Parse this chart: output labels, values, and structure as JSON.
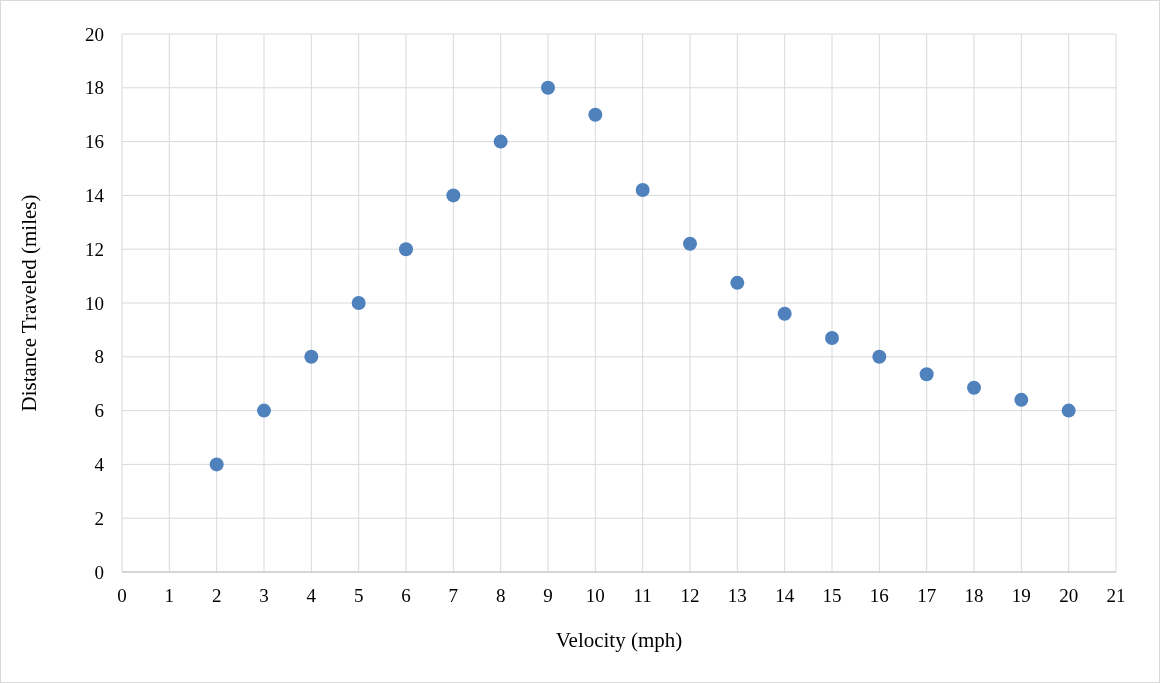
{
  "chart_data": {
    "type": "scatter",
    "xlabel": "Velocity (mph)",
    "ylabel": "Distance Traveled (miles)",
    "x": [
      2,
      3,
      4,
      5,
      6,
      7,
      8,
      9,
      10,
      11,
      12,
      13,
      14,
      15,
      16,
      17,
      18,
      19,
      20
    ],
    "series": [
      {
        "color": "#4f81bd",
        "values": [
          4,
          6,
          8,
          10,
          12,
          14,
          16,
          18,
          17,
          14.2,
          12.2,
          10.75,
          9.6,
          8.7,
          8,
          7.35,
          6.85,
          6.4,
          6
        ]
      }
    ],
    "xlim": [
      0,
      21
    ],
    "xticks": [
      0,
      1,
      2,
      3,
      4,
      5,
      6,
      7,
      8,
      9,
      10,
      11,
      12,
      13,
      14,
      15,
      16,
      17,
      18,
      19,
      20,
      21
    ],
    "ylim": [
      0,
      20
    ],
    "yticks": [
      0,
      2,
      4,
      6,
      8,
      10,
      12,
      14,
      16,
      18,
      20
    ],
    "grid": true,
    "marker": "circle"
  }
}
